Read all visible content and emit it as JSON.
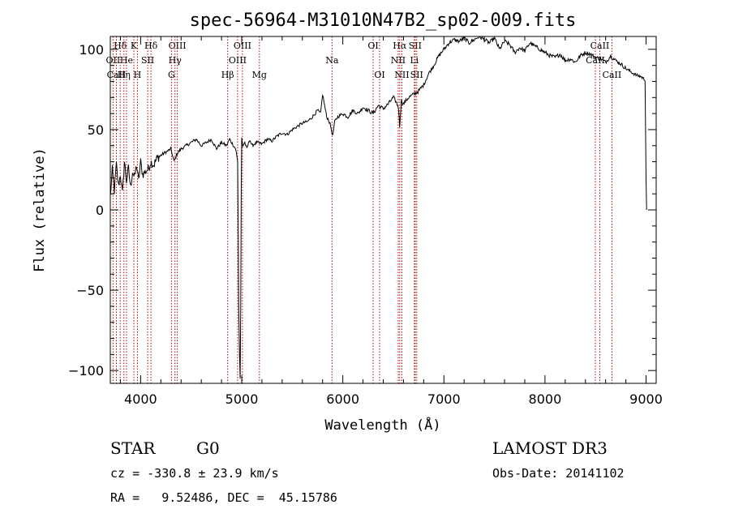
{
  "chart_data": {
    "type": "line",
    "title": "spec-56964-M31010N47B2_sp02-009.fits",
    "xlabel": "Wavelength (Å)",
    "ylabel": "Flux (relative)",
    "xlim": [
      3700,
      9100
    ],
    "ylim": [
      -108,
      108
    ],
    "xticks": [
      4000,
      5000,
      6000,
      7000,
      8000,
      9000
    ],
    "yticks": [
      -100,
      -50,
      0,
      50,
      100
    ],
    "xminor_step": 200,
    "yminor_step": 10,
    "series": [
      {
        "name": "flux",
        "color": "#000000",
        "x": [
          3700,
          3720,
          3740,
          3760,
          3780,
          3800,
          3820,
          3840,
          3860,
          3880,
          3900,
          3920,
          3940,
          3960,
          3980,
          4000,
          4020,
          4050,
          4080,
          4100,
          4130,
          4160,
          4200,
          4250,
          4300,
          4330,
          4360,
          4400,
          4450,
          4500,
          4550,
          4600,
          4650,
          4700,
          4750,
          4800,
          4850,
          4880,
          4900,
          4920,
          4940,
          4960,
          4970,
          4978,
          4985,
          4990,
          4995,
          5000,
          5010,
          5030,
          5050,
          5080,
          5100,
          5150,
          5200,
          5250,
          5300,
          5350,
          5400,
          5450,
          5500,
          5550,
          5600,
          5650,
          5700,
          5750,
          5780,
          5800,
          5820,
          5840,
          5860,
          5880,
          5900,
          5920,
          5950,
          6000,
          6050,
          6100,
          6150,
          6200,
          6250,
          6300,
          6350,
          6400,
          6450,
          6500,
          6520,
          6550,
          6563,
          6570,
          6580,
          6600,
          6650,
          6700,
          6750,
          6800,
          6850,
          6900,
          6950,
          7000,
          7050,
          7100,
          7150,
          7200,
          7250,
          7300,
          7350,
          7400,
          7450,
          7500,
          7550,
          7600,
          7650,
          7700,
          7750,
          7800,
          7850,
          7900,
          7950,
          8000,
          8050,
          8100,
          8150,
          8200,
          8250,
          8300,
          8350,
          8400,
          8450,
          8500,
          8550,
          8600,
          8650,
          8700,
          8750,
          8800,
          8850,
          8900,
          8950,
          8990,
          9000,
          9005
        ],
        "values": [
          8,
          25,
          12,
          28,
          15,
          22,
          10,
          30,
          18,
          26,
          14,
          24,
          20,
          28,
          18,
          30,
          22,
          24,
          26,
          30,
          28,
          32,
          34,
          36,
          38,
          30,
          35,
          38,
          40,
          42,
          44,
          40,
          42,
          44,
          38,
          42,
          40,
          44,
          42,
          40,
          38,
          30,
          -60,
          -90,
          -105,
          -60,
          10,
          45,
          40,
          42,
          38,
          44,
          40,
          42,
          41,
          44,
          43,
          46,
          48,
          47,
          50,
          52,
          54,
          55,
          58,
          62,
          60,
          72,
          65,
          58,
          56,
          52,
          46,
          55,
          58,
          60,
          58,
          62,
          60,
          64,
          62,
          60,
          65,
          63,
          66,
          70,
          68,
          64,
          52,
          60,
          68,
          66,
          70,
          72,
          74,
          78,
          85,
          90,
          96,
          100,
          104,
          106,
          105,
          107,
          104,
          106,
          108,
          106,
          104,
          107,
          100,
          105,
          103,
          98,
          101,
          99,
          104,
          102,
          100,
          98,
          96,
          95,
          97,
          93,
          94,
          92,
          96,
          98,
          97,
          95,
          94,
          92,
          96,
          93,
          91,
          88,
          86,
          84,
          83,
          81,
          20,
          0
        ],
        "_note": "values sampled at sample points along the plotted spectrum curve"
      }
    ],
    "spectral_lines": [
      {
        "name": "Hδ",
        "wavelength": 3798,
        "row": 1
      },
      {
        "name": "OII",
        "wavelength": 3727,
        "row": 2
      },
      {
        "name": "CaII",
        "wavelength": 3760,
        "row": 3
      },
      {
        "name": "He",
        "wavelength": 3860,
        "row": 2
      },
      {
        "name": "Hη",
        "wavelength": 3835,
        "row": 3
      },
      {
        "name": "K",
        "wavelength": 3933,
        "row": 1
      },
      {
        "name": "SII",
        "wavelength": 4070,
        "row": 2
      },
      {
        "name": "H",
        "wavelength": 3968,
        "row": 3
      },
      {
        "name": "Hδ",
        "wavelength": 4102,
        "row": 1
      },
      {
        "name": "OIII",
        "wavelength": 4363,
        "row": 1
      },
      {
        "name": "Hγ",
        "wavelength": 4340,
        "row": 2
      },
      {
        "name": "G",
        "wavelength": 4305,
        "row": 3
      },
      {
        "name": "Hβ",
        "wavelength": 4861,
        "row": 3
      },
      {
        "name": "OIII",
        "wavelength": 5007,
        "row": 1
      },
      {
        "name": "OIII",
        "wavelength": 4959,
        "row": 2
      },
      {
        "name": "Mg",
        "wavelength": 5175,
        "row": 3
      },
      {
        "name": "Na",
        "wavelength": 5893,
        "row": 2
      },
      {
        "name": "OI",
        "wavelength": 6300,
        "row": 1
      },
      {
        "name": "OI",
        "wavelength": 6364,
        "row": 3
      },
      {
        "name": "Hα",
        "wavelength": 6563,
        "row": 1
      },
      {
        "name": "NII",
        "wavelength": 6548,
        "row": 2
      },
      {
        "name": "NII",
        "wavelength": 6584,
        "row": 3
      },
      {
        "name": "SII",
        "wavelength": 6716,
        "row": 1
      },
      {
        "name": "Li",
        "wavelength": 6708,
        "row": 2
      },
      {
        "name": "SII",
        "wavelength": 6731,
        "row": 3
      },
      {
        "name": "CaII",
        "wavelength": 8542,
        "row": 1
      },
      {
        "name": "CaII",
        "wavelength": 8498,
        "row": 2
      },
      {
        "name": "CaII",
        "wavelength": 8662,
        "row": 3
      }
    ],
    "line_color": "#b30000"
  },
  "footer": {
    "class": "STAR",
    "subclass": "G0",
    "survey": "LAMOST DR3",
    "cz": "cz = -330.8 ± 23.9 km/s",
    "obs_date": "Obs-Date: 20141102",
    "coords": "RA =   9.52486, DEC =  45.15786"
  }
}
